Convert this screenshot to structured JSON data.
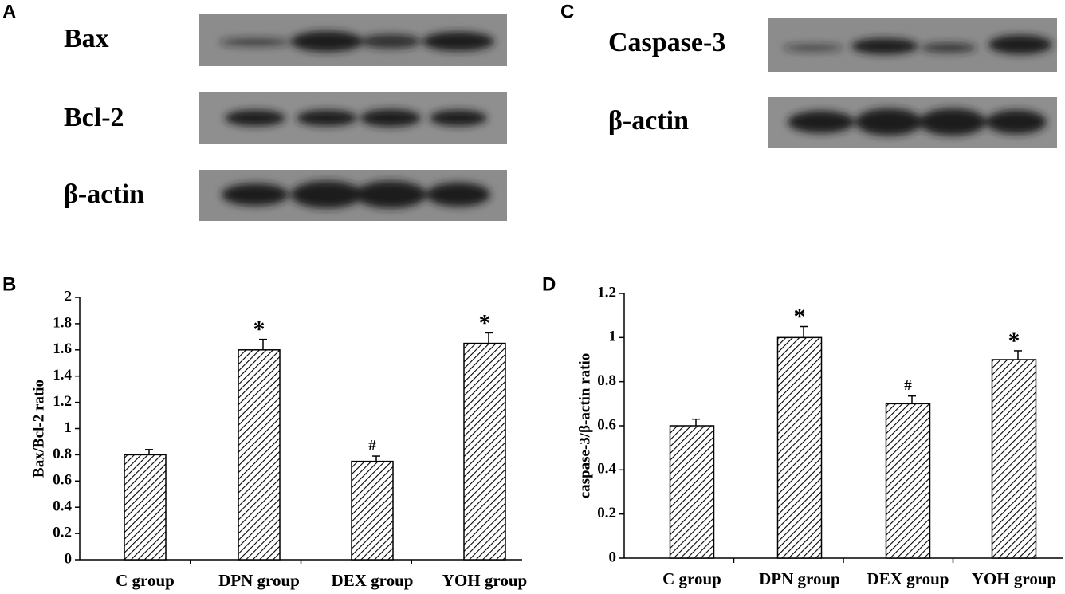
{
  "blots": [
    {
      "panel": "A",
      "labels": [
        "Bax",
        "Bcl-2",
        "β-actin"
      ]
    },
    {
      "panel": "C",
      "labels": [
        "Caspase-3",
        "β-actin"
      ]
    }
  ],
  "chart_data": [
    {
      "panel": "B",
      "type": "bar",
      "ylabel": "Bax/Bcl-2 ratio",
      "categories": [
        "C group",
        "DPN group",
        "DEX group",
        "YOH group"
      ],
      "values": [
        0.8,
        1.6,
        0.75,
        1.65
      ],
      "errors": [
        0.04,
        0.08,
        0.04,
        0.08
      ],
      "value_annotations": [
        null,
        "*",
        "#",
        "*"
      ],
      "color": "#000000",
      "ylim": [
        0,
        2
      ],
      "yticks": [
        0,
        0.2,
        0.4,
        0.6,
        0.8,
        1,
        1.2,
        1.4,
        1.6,
        1.8,
        2
      ]
    },
    {
      "panel": "D",
      "type": "bar",
      "ylabel": "caspase-3/β-actin ratio",
      "categories": [
        "C group",
        "DPN group",
        "DEX group",
        "YOH group"
      ],
      "values": [
        0.6,
        1.0,
        0.7,
        0.9
      ],
      "errors": [
        0.03,
        0.05,
        0.035,
        0.04
      ],
      "value_annotations": [
        null,
        "*",
        "#",
        "*"
      ],
      "color": "#000000",
      "ylim": [
        0,
        1.2
      ],
      "yticks": [
        0,
        0.2,
        0.4,
        0.6,
        0.8,
        1,
        1.2
      ]
    }
  ]
}
